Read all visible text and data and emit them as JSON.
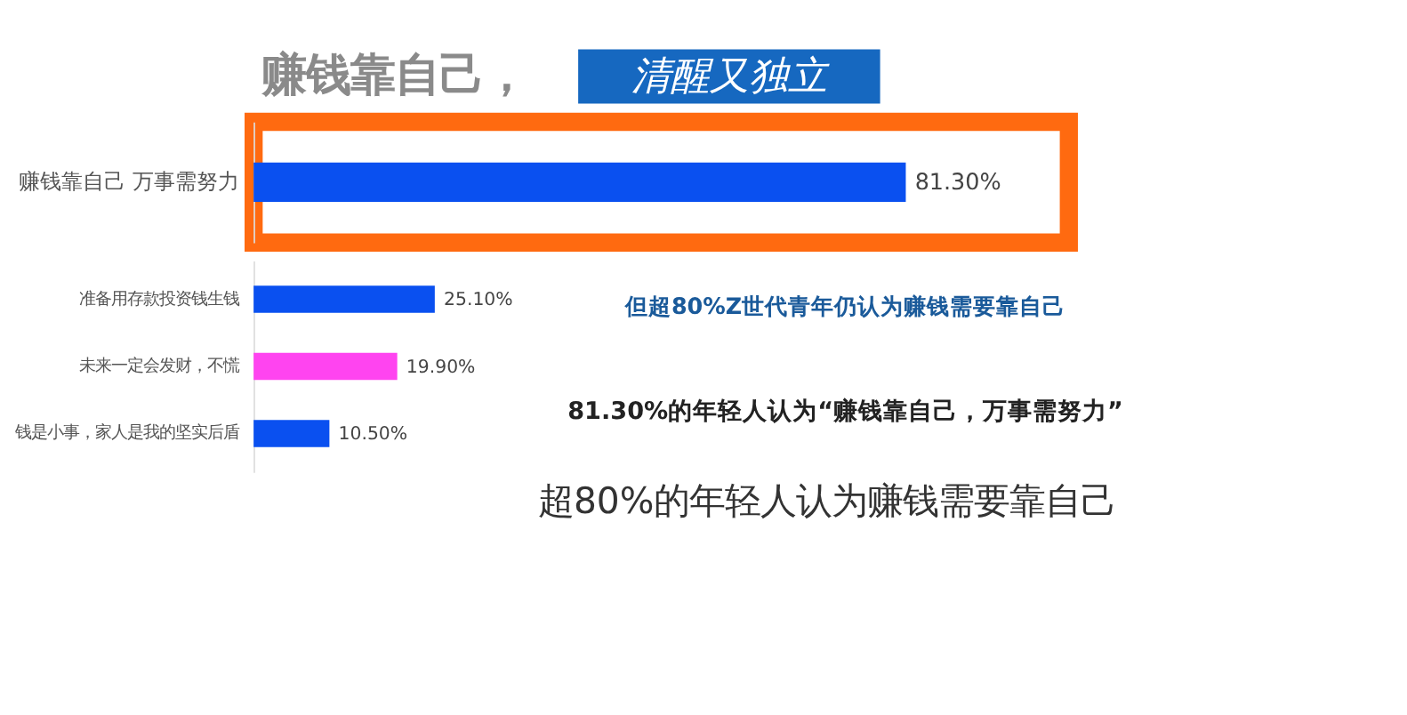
{
  "chart_data": [
    {
      "type": "bar",
      "title": "赚钱靠自己，",
      "subtitle": "清醒又独立",
      "orientation": "horizontal",
      "categories": [
        "赚钱靠自己 万事需努力"
      ],
      "values": [
        81.3
      ],
      "colors": [
        "#0a50f0"
      ],
      "value_labels": [
        "81.30%"
      ]
    },
    {
      "type": "bar",
      "orientation": "horizontal",
      "categories": [
        "准备用存款投资钱生钱",
        "未来一定会发财，不慌",
        "钱是小事，家人是我的坚实后盾"
      ],
      "values": [
        25.1,
        19.9,
        10.5
      ],
      "colors": [
        "#0a50f0",
        "#ff44f0",
        "#0a50f0"
      ],
      "value_labels": [
        "25.10%",
        "19.90%",
        "10.50%"
      ],
      "annotations": [
        "但超80%Z世代青年仍认为赚钱需要靠自己",
        "81.30%的年轻人认为“赚钱靠自己，万事需努力”",
        "超80%的年轻人认为赚钱需要靠自己"
      ]
    }
  ]
}
